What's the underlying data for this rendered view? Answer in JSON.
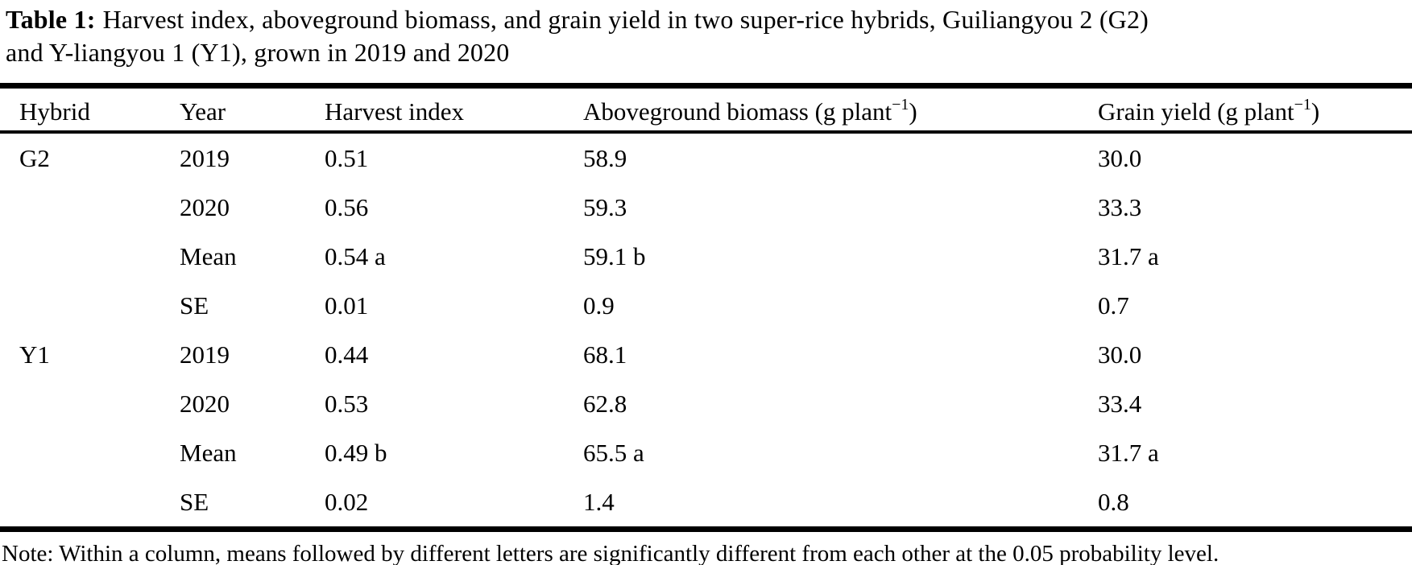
{
  "caption": {
    "label": "Table 1:",
    "line1": "Harvest index, aboveground biomass, and grain yield in two super-rice hybrids, Guiliangyou 2 (G2)",
    "line2": "and Y-liangyou 1 (Y1), grown in 2019 and 2020"
  },
  "table": {
    "columns": [
      {
        "pre": "Hybrid",
        "sup": "",
        "post": ""
      },
      {
        "pre": "Year",
        "sup": "",
        "post": ""
      },
      {
        "pre": "Harvest index",
        "sup": "",
        "post": ""
      },
      {
        "pre": "Aboveground biomass (g plant",
        "sup": "−1",
        "post": ")"
      },
      {
        "pre": "Grain yield (g plant",
        "sup": "−1",
        "post": ")"
      }
    ],
    "rows": [
      {
        "hybrid": "G2",
        "year": "2019",
        "harvest_index": "0.51",
        "aboveground_biomass": "58.9",
        "grain_yield": "30.0"
      },
      {
        "hybrid": "",
        "year": "2020",
        "harvest_index": "0.56",
        "aboveground_biomass": "59.3",
        "grain_yield": "33.3"
      },
      {
        "hybrid": "",
        "year": "Mean",
        "harvest_index": "0.54 a",
        "aboveground_biomass": "59.1 b",
        "grain_yield": "31.7 a"
      },
      {
        "hybrid": "",
        "year": "SE",
        "harvest_index": "0.01",
        "aboveground_biomass": "0.9",
        "grain_yield": "0.7"
      },
      {
        "hybrid": "Y1",
        "year": "2019",
        "harvest_index": "0.44",
        "aboveground_biomass": "68.1",
        "grain_yield": "30.0"
      },
      {
        "hybrid": "",
        "year": "2020",
        "harvest_index": "0.53",
        "aboveground_biomass": "62.8",
        "grain_yield": "33.4"
      },
      {
        "hybrid": "",
        "year": "Mean",
        "harvest_index": "0.49 b",
        "aboveground_biomass": "65.5 a",
        "grain_yield": "31.7 a"
      },
      {
        "hybrid": "",
        "year": "SE",
        "harvest_index": "0.02",
        "aboveground_biomass": "1.4",
        "grain_yield": "0.8"
      }
    ]
  },
  "note": "Note: Within a column, means followed by different letters are significantly different from each other at the 0.05 probability level.",
  "colors": {
    "text": "#000000",
    "background": "#ffffff",
    "rule": "#000000"
  }
}
